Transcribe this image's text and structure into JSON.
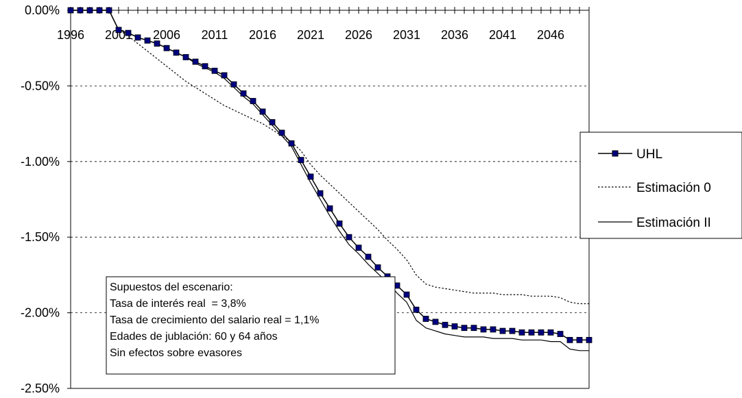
{
  "chart_data": {
    "type": "line",
    "x": [
      1996,
      1997,
      1998,
      1999,
      2000,
      2001,
      2002,
      2003,
      2004,
      2005,
      2006,
      2007,
      2008,
      2009,
      2010,
      2011,
      2012,
      2013,
      2014,
      2015,
      2016,
      2017,
      2018,
      2019,
      2020,
      2021,
      2022,
      2023,
      2024,
      2025,
      2026,
      2027,
      2028,
      2029,
      2030,
      2031,
      2032,
      2033,
      2034,
      2035,
      2036,
      2037,
      2038,
      2039,
      2040,
      2041,
      2042,
      2043,
      2044,
      2045,
      2046,
      2047,
      2048,
      2049,
      2050
    ],
    "x_tick_labels": [
      "1996",
      "2001",
      "2006",
      "2011",
      "2016",
      "2021",
      "2026",
      "2031",
      "2036",
      "2041",
      "2046"
    ],
    "y_tick_labels": [
      "0.00%",
      "-0.50%",
      "-1.00%",
      "-1.50%",
      "-2.00%",
      "-2.50%"
    ],
    "ylim": [
      -2.5,
      0
    ],
    "y_unit": "%",
    "grid": "horizontal dashed",
    "legend_position": "right",
    "series": [
      {
        "name": "UHL",
        "style": "solid line with square markers",
        "color": "#000080",
        "values": [
          0,
          0,
          0,
          0,
          0,
          -0.13,
          -0.15,
          -0.18,
          -0.2,
          -0.22,
          -0.25,
          -0.28,
          -0.31,
          -0.34,
          -0.37,
          -0.4,
          -0.43,
          -0.49,
          -0.55,
          -0.6,
          -0.67,
          -0.74,
          -0.81,
          -0.88,
          -0.99,
          -1.1,
          -1.21,
          -1.31,
          -1.41,
          -1.5,
          -1.57,
          -1.63,
          -1.7,
          -1.76,
          -1.82,
          -1.88,
          -1.98,
          -2.04,
          -2.06,
          -2.08,
          -2.09,
          -2.1,
          -2.1,
          -2.11,
          -2.11,
          -2.12,
          -2.12,
          -2.13,
          -2.13,
          -2.13,
          -2.13,
          -2.14,
          -2.18,
          -2.18,
          -2.18
        ]
      },
      {
        "name": "Estimación 0",
        "style": "dotted line",
        "color": "#000000",
        "values": [
          0,
          0,
          0,
          0,
          0,
          -0.13,
          -0.17,
          -0.22,
          -0.27,
          -0.32,
          -0.37,
          -0.42,
          -0.47,
          -0.51,
          -0.55,
          -0.59,
          -0.63,
          -0.66,
          -0.69,
          -0.72,
          -0.75,
          -0.79,
          -0.83,
          -0.87,
          -0.93,
          -1.02,
          -1.09,
          -1.15,
          -1.21,
          -1.27,
          -1.33,
          -1.39,
          -1.45,
          -1.52,
          -1.58,
          -1.65,
          -1.75,
          -1.81,
          -1.83,
          -1.84,
          -1.85,
          -1.86,
          -1.87,
          -1.87,
          -1.87,
          -1.88,
          -1.88,
          -1.88,
          -1.89,
          -1.89,
          -1.89,
          -1.9,
          -1.93,
          -1.94,
          -1.94
        ]
      },
      {
        "name": "Estimación II",
        "style": "solid line",
        "color": "#000000",
        "values": [
          0,
          0,
          0,
          0,
          0,
          -0.13,
          -0.15,
          -0.18,
          -0.2,
          -0.22,
          -0.25,
          -0.28,
          -0.31,
          -0.35,
          -0.38,
          -0.41,
          -0.45,
          -0.51,
          -0.57,
          -0.62,
          -0.69,
          -0.76,
          -0.83,
          -0.9,
          -1.02,
          -1.14,
          -1.25,
          -1.36,
          -1.46,
          -1.55,
          -1.61,
          -1.68,
          -1.74,
          -1.8,
          -1.87,
          -1.93,
          -2.05,
          -2.1,
          -2.12,
          -2.14,
          -2.15,
          -2.16,
          -2.16,
          -2.16,
          -2.17,
          -2.17,
          -2.17,
          -2.18,
          -2.18,
          -2.18,
          -2.19,
          -2.19,
          -2.24,
          -2.25,
          -2.25
        ]
      }
    ],
    "annotation": {
      "lines": [
        "Supuestos del escenario:",
        "Tasa de interés real  = 3,8%",
        "Tasa de crecimiento del salario real = 1,1%",
        "Edades de jublación: 60 y 64 años",
        "Sin efectos sobre evasores"
      ]
    }
  }
}
